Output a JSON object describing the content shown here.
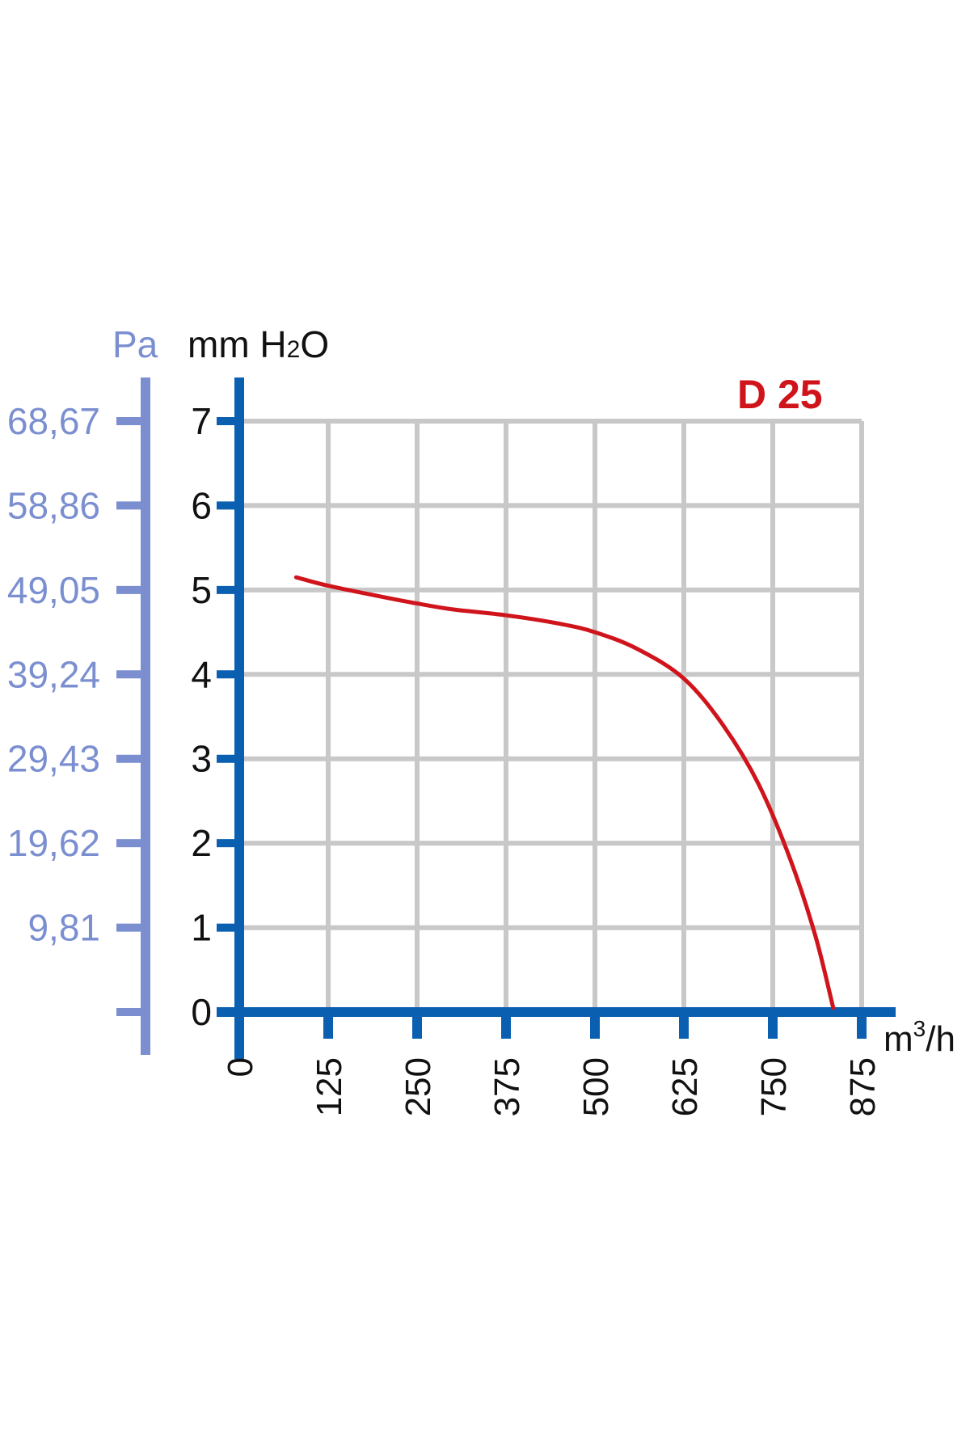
{
  "chart_data": {
    "type": "line",
    "y_left": {
      "label": "Pa",
      "ticks": [
        "68,67",
        "58,86",
        "49,05",
        "39,24",
        "29,43",
        "19,62",
        "9,81",
        ""
      ]
    },
    "y": {
      "label_main": "mm H",
      "label_sub": "2",
      "label_end": "O",
      "ylim": [
        0,
        7
      ],
      "ticks": [
        "0",
        "1",
        "2",
        "3",
        "4",
        "5",
        "6",
        "7"
      ]
    },
    "x": {
      "label_main": "m",
      "label_sup": "3",
      "label_end": "/h",
      "xlim": [
        0,
        875
      ],
      "ticks": [
        "0",
        "125",
        "250",
        "375",
        "500",
        "625",
        "750",
        "875"
      ]
    },
    "grid": true,
    "series": [
      {
        "name": "D 25",
        "color": "#d0141c",
        "points": [
          [
            80,
            5.15
          ],
          [
            125,
            5.05
          ],
          [
            200,
            4.92
          ],
          [
            250,
            4.84
          ],
          [
            300,
            4.77
          ],
          [
            375,
            4.7
          ],
          [
            450,
            4.6
          ],
          [
            500,
            4.5
          ],
          [
            560,
            4.3
          ],
          [
            625,
            3.95
          ],
          [
            680,
            3.4
          ],
          [
            730,
            2.7
          ],
          [
            775,
            1.8
          ],
          [
            810,
            0.9
          ],
          [
            835,
            0.05
          ]
        ]
      }
    ],
    "colors": {
      "axis": "#0a5fb0",
      "secondary_axis": "#7b8fd0",
      "grid": "#c8c8c8"
    }
  }
}
